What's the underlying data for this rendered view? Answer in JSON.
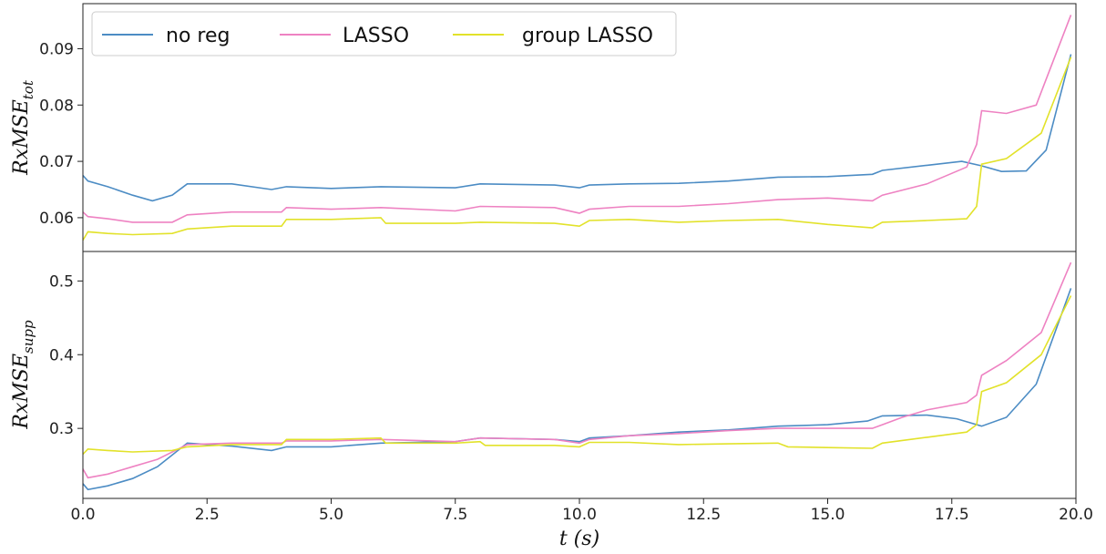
{
  "chart_data": {
    "type": "line",
    "xlabel": "t (s)",
    "xlim": [
      0,
      20
    ],
    "x_ticks": [
      "0.0",
      "2.5",
      "5.0",
      "7.5",
      "10.0",
      "12.5",
      "15.0",
      "17.5",
      "20.0"
    ],
    "legend": {
      "placement": "top-left",
      "entries": [
        "no reg",
        "LASSO",
        "group LASSO"
      ]
    },
    "colors": {
      "no reg": "#4c8cc4",
      "LASSO": "#ee82c2",
      "group LASSO": "#e2e22a"
    },
    "panels": [
      {
        "ylabel": "RxMSE_tot",
        "ylabel_main": "RxMSE",
        "ylabel_sub": "tot",
        "ylim": [
          0.054,
          0.098
        ],
        "y_ticks": [
          0.06,
          0.07,
          0.08,
          0.09
        ],
        "y_tick_labels": [
          "0.06",
          "0.07",
          "0.08",
          "0.09"
        ],
        "series": [
          {
            "name": "no reg",
            "color": "#4c8cc4",
            "points": [
              [
                0.0,
                0.0675
              ],
              [
                0.1,
                0.0665
              ],
              [
                0.5,
                0.0655
              ],
              [
                1.0,
                0.064
              ],
              [
                1.4,
                0.063
              ],
              [
                1.8,
                0.064
              ],
              [
                2.1,
                0.066
              ],
              [
                3.0,
                0.066
              ],
              [
                3.8,
                0.065
              ],
              [
                4.1,
                0.0655
              ],
              [
                5.0,
                0.0652
              ],
              [
                6.0,
                0.0655
              ],
              [
                7.5,
                0.0653
              ],
              [
                8.0,
                0.066
              ],
              [
                9.5,
                0.0658
              ],
              [
                10.0,
                0.0653
              ],
              [
                10.2,
                0.0658
              ],
              [
                11.0,
                0.066
              ],
              [
                12.0,
                0.0661
              ],
              [
                13.0,
                0.0665
              ],
              [
                14.0,
                0.0672
              ],
              [
                15.0,
                0.0673
              ],
              [
                15.9,
                0.0677
              ],
              [
                16.1,
                0.0684
              ],
              [
                17.0,
                0.0693
              ],
              [
                17.7,
                0.07
              ],
              [
                18.1,
                0.0692
              ],
              [
                18.5,
                0.0682
              ],
              [
                19.0,
                0.0683
              ],
              [
                19.4,
                0.072
              ],
              [
                19.9,
                0.089
              ]
            ]
          },
          {
            "name": "LASSO",
            "color": "#ee82c2",
            "points": [
              [
                0.0,
                0.061
              ],
              [
                0.1,
                0.0602
              ],
              [
                0.5,
                0.0598
              ],
              [
                1.0,
                0.0592
              ],
              [
                1.8,
                0.0592
              ],
              [
                2.1,
                0.0605
              ],
              [
                3.0,
                0.061
              ],
              [
                4.0,
                0.061
              ],
              [
                4.1,
                0.0618
              ],
              [
                5.0,
                0.0615
              ],
              [
                6.0,
                0.0618
              ],
              [
                7.5,
                0.0612
              ],
              [
                8.0,
                0.062
              ],
              [
                9.5,
                0.0618
              ],
              [
                10.0,
                0.0608
              ],
              [
                10.2,
                0.0615
              ],
              [
                11.0,
                0.062
              ],
              [
                12.0,
                0.062
              ],
              [
                13.0,
                0.0625
              ],
              [
                14.0,
                0.0632
              ],
              [
                15.0,
                0.0635
              ],
              [
                15.9,
                0.063
              ],
              [
                16.1,
                0.064
              ],
              [
                17.0,
                0.066
              ],
              [
                17.8,
                0.069
              ],
              [
                18.0,
                0.073
              ],
              [
                18.1,
                0.079
              ],
              [
                18.6,
                0.0785
              ],
              [
                19.2,
                0.08
              ],
              [
                19.9,
                0.096
              ]
            ]
          },
          {
            "name": "group LASSO",
            "color": "#e2e22a",
            "points": [
              [
                0.0,
                0.056
              ],
              [
                0.1,
                0.0575
              ],
              [
                0.5,
                0.0572
              ],
              [
                1.0,
                0.057
              ],
              [
                1.8,
                0.0572
              ],
              [
                2.1,
                0.058
              ],
              [
                3.0,
                0.0585
              ],
              [
                4.0,
                0.0585
              ],
              [
                4.1,
                0.0597
              ],
              [
                5.0,
                0.0597
              ],
              [
                6.0,
                0.06
              ],
              [
                6.1,
                0.059
              ],
              [
                7.5,
                0.059
              ],
              [
                8.0,
                0.0592
              ],
              [
                9.5,
                0.059
              ],
              [
                10.0,
                0.0585
              ],
              [
                10.2,
                0.0595
              ],
              [
                11.0,
                0.0597
              ],
              [
                12.0,
                0.0592
              ],
              [
                13.0,
                0.0595
              ],
              [
                14.0,
                0.0597
              ],
              [
                15.0,
                0.0588
              ],
              [
                15.9,
                0.0582
              ],
              [
                16.1,
                0.0592
              ],
              [
                17.0,
                0.0595
              ],
              [
                17.8,
                0.0598
              ],
              [
                18.0,
                0.062
              ],
              [
                18.1,
                0.0695
              ],
              [
                18.6,
                0.0705
              ],
              [
                19.3,
                0.075
              ],
              [
                19.9,
                0.0885
              ]
            ]
          }
        ]
      },
      {
        "ylabel": "RxMSE_supp",
        "ylabel_main": "RxMSE",
        "ylabel_sub": "supp",
        "ylim": [
          0.205,
          0.54
        ],
        "y_ticks": [
          0.3,
          0.4,
          0.5
        ],
        "y_tick_labels": [
          "0.3",
          "0.4",
          "0.5"
        ],
        "series": [
          {
            "name": "no reg",
            "color": "#4c8cc4",
            "points": [
              [
                0.0,
                0.225
              ],
              [
                0.1,
                0.217
              ],
              [
                0.5,
                0.222
              ],
              [
                1.0,
                0.232
              ],
              [
                1.5,
                0.248
              ],
              [
                2.1,
                0.28
              ],
              [
                3.0,
                0.276
              ],
              [
                3.8,
                0.27
              ],
              [
                4.1,
                0.275
              ],
              [
                5.0,
                0.275
              ],
              [
                6.0,
                0.28
              ],
              [
                7.5,
                0.282
              ],
              [
                8.0,
                0.287
              ],
              [
                9.5,
                0.285
              ],
              [
                10.0,
                0.282
              ],
              [
                10.2,
                0.287
              ],
              [
                11.0,
                0.29
              ],
              [
                12.0,
                0.295
              ],
              [
                13.0,
                0.298
              ],
              [
                14.0,
                0.303
              ],
              [
                15.0,
                0.305
              ],
              [
                15.8,
                0.31
              ],
              [
                16.1,
                0.317
              ],
              [
                17.0,
                0.318
              ],
              [
                17.6,
                0.313
              ],
              [
                18.1,
                0.303
              ],
              [
                18.6,
                0.315
              ],
              [
                19.2,
                0.36
              ],
              [
                19.9,
                0.49
              ]
            ]
          },
          {
            "name": "LASSO",
            "color": "#ee82c2",
            "points": [
              [
                0.0,
                0.245
              ],
              [
                0.1,
                0.233
              ],
              [
                0.5,
                0.238
              ],
              [
                1.0,
                0.248
              ],
              [
                1.5,
                0.258
              ],
              [
                2.1,
                0.278
              ],
              [
                3.0,
                0.28
              ],
              [
                4.0,
                0.28
              ],
              [
                4.1,
                0.283
              ],
              [
                5.0,
                0.283
              ],
              [
                6.0,
                0.285
              ],
              [
                7.5,
                0.282
              ],
              [
                8.0,
                0.287
              ],
              [
                9.5,
                0.285
              ],
              [
                10.0,
                0.28
              ],
              [
                10.2,
                0.285
              ],
              [
                11.0,
                0.29
              ],
              [
                12.0,
                0.293
              ],
              [
                13.0,
                0.297
              ],
              [
                14.0,
                0.3
              ],
              [
                15.0,
                0.3
              ],
              [
                15.9,
                0.3
              ],
              [
                16.1,
                0.305
              ],
              [
                16.5,
                0.315
              ],
              [
                17.0,
                0.325
              ],
              [
                17.8,
                0.335
              ],
              [
                18.0,
                0.345
              ],
              [
                18.1,
                0.372
              ],
              [
                18.6,
                0.392
              ],
              [
                19.3,
                0.43
              ],
              [
                19.9,
                0.525
              ]
            ]
          },
          {
            "name": "group LASSO",
            "color": "#e2e22a",
            "points": [
              [
                0.0,
                0.265
              ],
              [
                0.1,
                0.272
              ],
              [
                0.5,
                0.27
              ],
              [
                1.0,
                0.268
              ],
              [
                1.8,
                0.27
              ],
              [
                2.1,
                0.275
              ],
              [
                3.0,
                0.278
              ],
              [
                4.0,
                0.278
              ],
              [
                4.1,
                0.285
              ],
              [
                5.0,
                0.285
              ],
              [
                6.0,
                0.287
              ],
              [
                6.1,
                0.28
              ],
              [
                7.5,
                0.28
              ],
              [
                8.0,
                0.282
              ],
              [
                8.1,
                0.277
              ],
              [
                9.5,
                0.277
              ],
              [
                10.0,
                0.275
              ],
              [
                10.2,
                0.281
              ],
              [
                11.0,
                0.281
              ],
              [
                12.0,
                0.278
              ],
              [
                13.0,
                0.279
              ],
              [
                14.0,
                0.28
              ],
              [
                14.2,
                0.275
              ],
              [
                15.0,
                0.274
              ],
              [
                15.9,
                0.273
              ],
              [
                16.1,
                0.28
              ],
              [
                17.0,
                0.288
              ],
              [
                17.8,
                0.295
              ],
              [
                18.0,
                0.305
              ],
              [
                18.1,
                0.35
              ],
              [
                18.6,
                0.362
              ],
              [
                19.3,
                0.4
              ],
              [
                19.9,
                0.48
              ]
            ]
          }
        ]
      }
    ]
  }
}
